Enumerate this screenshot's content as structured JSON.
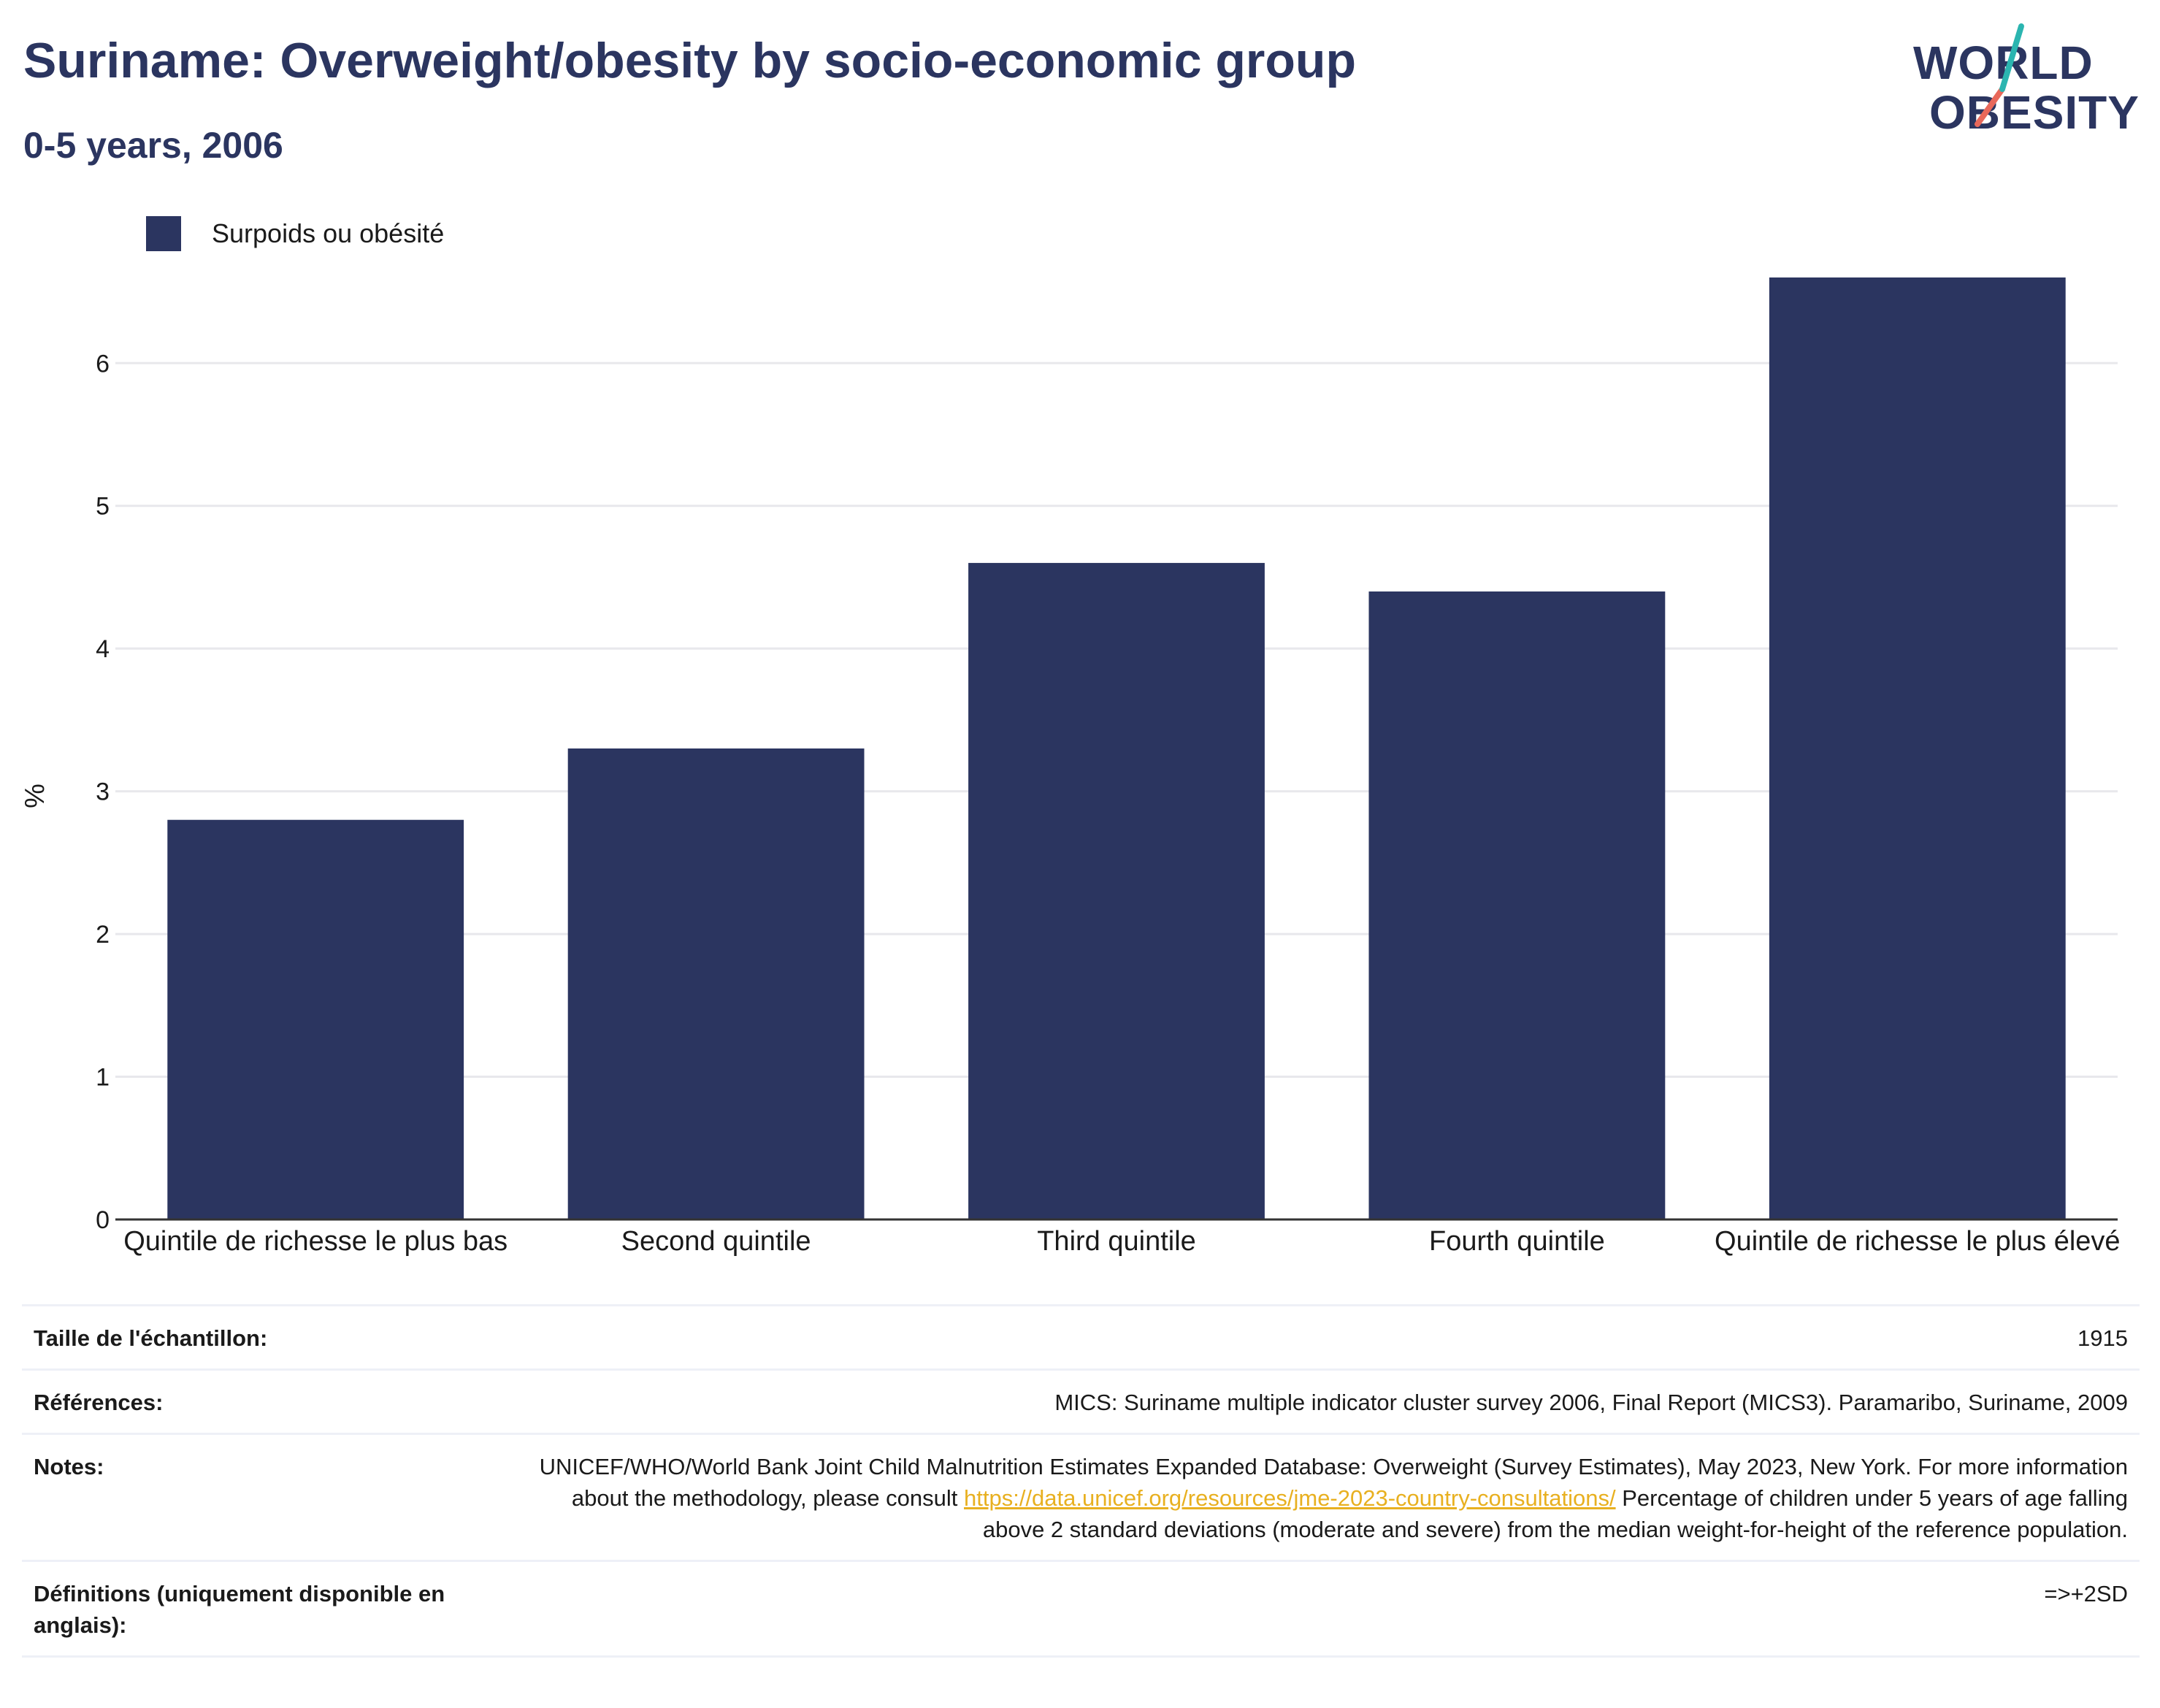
{
  "header": {
    "title": "Suriname: Overweight/obesity by socio-economic group",
    "subtitle": "0-5 years, 2006"
  },
  "logo": {
    "line1": "WORLD",
    "line2": "OBESITY",
    "slash_colors": [
      "#2bb5b0",
      "#e8685a"
    ]
  },
  "colors": {
    "bar": "#2b3560",
    "title": "#2b3560",
    "link": "#e8b020"
  },
  "chart_data": {
    "type": "bar",
    "categories": [
      "Quintile de richesse le plus bas",
      "Second quintile",
      "Third quintile",
      "Fourth quintile",
      "Quintile de richesse le plus élevé"
    ],
    "series": [
      {
        "name": "Surpoids ou obésité",
        "values": [
          2.8,
          3.3,
          4.6,
          4.4,
          6.6
        ]
      }
    ],
    "ylabel": "%",
    "xlabel": "",
    "ylim": [
      0,
      6.6
    ],
    "yticks": [
      0,
      1,
      2,
      3,
      4,
      5,
      6
    ],
    "grid": true,
    "legend_position": "top-left"
  },
  "info": {
    "rows": [
      {
        "label": "Taille de l'échantillon:",
        "value": "1915"
      },
      {
        "label": "Références:",
        "value": "MICS: Suriname multiple indicator cluster survey 2006, Final Report (MICS3). Paramaribo, Suriname, 2009"
      },
      {
        "label": "Notes:",
        "value": "UNICEF/WHO/World Bank Joint Child Malnutrition Estimates Expanded Database: Overweight (Survey Estimates), May 2023, New York. For more information about the methodology, please consult",
        "link": "https://data.unicef.org/resources/jme-2023-country-consultations/",
        "value_after": "Percentage of children under 5 years of age falling above 2 standard deviations (moderate and severe) from the median weight-for-height of the reference population."
      },
      {
        "label": "Définitions (uniquement disponible en anglais):",
        "value": "=>+2SD"
      }
    ]
  }
}
